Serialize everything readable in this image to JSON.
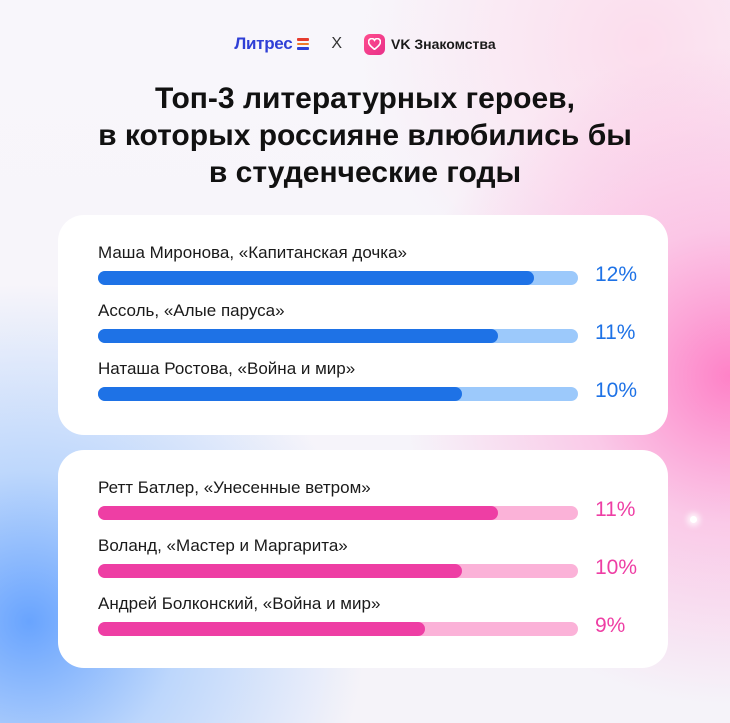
{
  "header": {
    "brand_left": "Литрес",
    "separator": "X",
    "brand_right": "VK Знакомства"
  },
  "chart_data": {
    "type": "bar",
    "title_lines": [
      "Топ-3 литературных героев,",
      "в которых россияне влюбились бы",
      "в студенческие годы"
    ],
    "value_format": "percent",
    "xlim": [
      0,
      13.2
    ],
    "groups": [
      {
        "color": "#1e72e6",
        "track_color": "#9cc9fb",
        "items": [
          {
            "label": "Маша Миронова, «Капитанская дочка»",
            "value": 12,
            "value_label": "12%"
          },
          {
            "label": "Ассоль, «Алые паруса»",
            "value": 11,
            "value_label": "11%"
          },
          {
            "label": "Наташа Ростова, «Война и мир»",
            "value": 10,
            "value_label": "10%"
          }
        ]
      },
      {
        "color": "#ee3ea4",
        "track_color": "#fbb2d8",
        "items": [
          {
            "label": "Ретт Батлер, «Унесенные ветром»",
            "value": 11,
            "value_label": "11%"
          },
          {
            "label": "Воланд, «Мастер и Маргарита»",
            "value": 10,
            "value_label": "10%"
          },
          {
            "label": "Андрей Болконский, «Война и мир»",
            "value": 9,
            "value_label": "9%"
          }
        ]
      }
    ]
  }
}
